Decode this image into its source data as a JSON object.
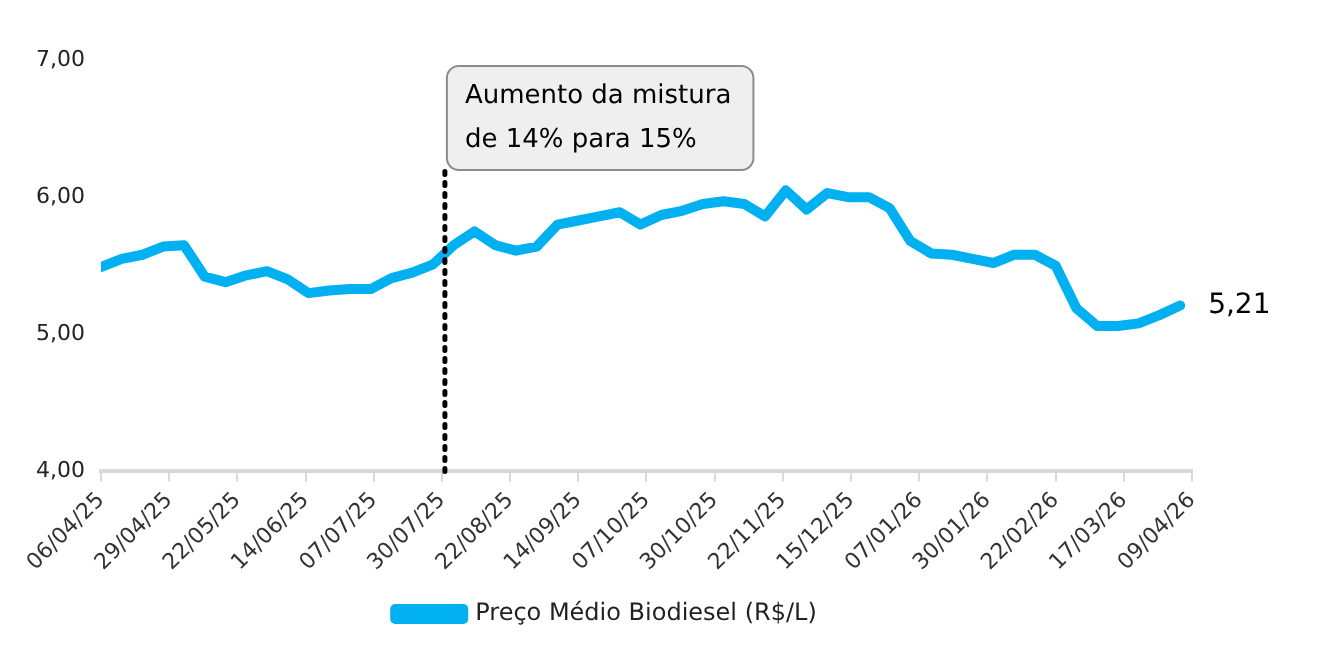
{
  "chart_data": {
    "type": "line",
    "x": [
      "2025-04-06",
      "2025-04-13",
      "2025-04-20",
      "2025-04-27",
      "2025-05-04",
      "2025-05-11",
      "2025-05-18",
      "2025-05-25",
      "2025-06-01",
      "2025-06-08",
      "2025-06-15",
      "2025-06-22",
      "2025-06-29",
      "2025-07-06",
      "2025-07-13",
      "2025-07-20",
      "2025-07-27",
      "2025-08-03",
      "2025-08-10",
      "2025-08-17",
      "2025-08-24",
      "2025-08-31",
      "2025-09-07",
      "2025-09-14",
      "2025-09-21",
      "2025-09-28",
      "2025-10-05",
      "2025-10-12",
      "2025-10-19",
      "2025-10-26",
      "2025-11-02",
      "2025-11-09",
      "2025-11-16",
      "2025-11-23",
      "2025-11-30",
      "2025-12-07",
      "2025-12-14",
      "2025-12-21",
      "2025-12-28",
      "2026-01-04",
      "2026-01-11",
      "2026-01-18",
      "2026-01-25",
      "2026-02-01",
      "2026-02-08",
      "2026-02-15",
      "2026-02-22",
      "2026-03-01",
      "2026-03-08",
      "2026-03-15",
      "2026-03-22",
      "2026-03-29",
      "2026-04-05"
    ],
    "series": [
      {
        "name": "Preço Médio Biodiesel (R$/L)",
        "color": "#00b0f0",
        "values": [
          5.49,
          5.55,
          5.58,
          5.64,
          5.65,
          5.42,
          5.38,
          5.43,
          5.46,
          5.4,
          5.3,
          5.32,
          5.33,
          5.33,
          5.41,
          5.45,
          5.51,
          5.65,
          5.75,
          5.65,
          5.61,
          5.64,
          5.8,
          5.83,
          5.86,
          5.89,
          5.8,
          5.87,
          5.9,
          5.95,
          5.97,
          5.95,
          5.86,
          6.05,
          5.91,
          6.03,
          6.0,
          6.0,
          5.92,
          5.68,
          5.59,
          5.58,
          5.55,
          5.52,
          5.58,
          5.58,
          5.5,
          5.19,
          5.06,
          5.06,
          5.08,
          5.14,
          5.21
        ],
        "value_labels": [
          null,
          null,
          null,
          null,
          null,
          null,
          null,
          null,
          null,
          null,
          null,
          null,
          null,
          null,
          null,
          null,
          null,
          null,
          null,
          null,
          null,
          null,
          null,
          null,
          null,
          null,
          null,
          null,
          null,
          null,
          null,
          null,
          null,
          null,
          null,
          null,
          null,
          null,
          null,
          null,
          null,
          null,
          null,
          null,
          null,
          null,
          null,
          null,
          null,
          null,
          null,
          null,
          "5,21"
        ]
      }
    ],
    "xlim": [
      "2025-04-06",
      "2026-04-09"
    ],
    "xticks": [
      {
        "value": "2025-04-06",
        "label": "06/04/25"
      },
      {
        "value": "2025-04-29",
        "label": "29/04/25"
      },
      {
        "value": "2025-05-22",
        "label": "22/05/25"
      },
      {
        "value": "2025-06-14",
        "label": "14/06/25"
      },
      {
        "value": "2025-07-07",
        "label": "07/07/25"
      },
      {
        "value": "2025-07-30",
        "label": "30/07/25"
      },
      {
        "value": "2025-08-22",
        "label": "22/08/25"
      },
      {
        "value": "2025-09-14",
        "label": "14/09/25"
      },
      {
        "value": "2025-10-07",
        "label": "07/10/25"
      },
      {
        "value": "2025-10-30",
        "label": "30/10/25"
      },
      {
        "value": "2025-11-22",
        "label": "22/11/25"
      },
      {
        "value": "2025-12-15",
        "label": "15/12/25"
      },
      {
        "value": "2026-01-07",
        "label": "07/01/26"
      },
      {
        "value": "2026-01-30",
        "label": "30/01/26"
      },
      {
        "value": "2026-02-22",
        "label": "22/02/26"
      },
      {
        "value": "2026-03-17",
        "label": "17/03/26"
      },
      {
        "value": "2026-04-09",
        "label": "09/04/26"
      }
    ],
    "ylim": [
      4,
      7
    ],
    "yticks": [
      {
        "value": 4,
        "label": "4,00"
      },
      {
        "value": 5,
        "label": "5,00"
      },
      {
        "value": 6,
        "label": "6,00"
      },
      {
        "value": 7,
        "label": "7,00"
      }
    ],
    "ref_lines": [
      {
        "axis": "x",
        "value": "2025-07-31",
        "label": "Aumento da mistura de 14% para 15%",
        "color": "#000000",
        "line_style": "dotted"
      }
    ],
    "grid": false,
    "legend": "bottom",
    "marker": "none",
    "line_style": "solid"
  }
}
